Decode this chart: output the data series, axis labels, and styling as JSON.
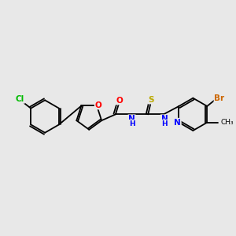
{
  "background_color": "#e8e8e8",
  "bond_color": "#000000",
  "atom_colors": {
    "Cl": "#00bb00",
    "O": "#ff0000",
    "N": "#0000ff",
    "S": "#bbaa00",
    "Br": "#cc6600",
    "C": "#000000",
    "H": "#0000ff"
  },
  "figsize": [
    3.0,
    3.0
  ],
  "dpi": 100
}
